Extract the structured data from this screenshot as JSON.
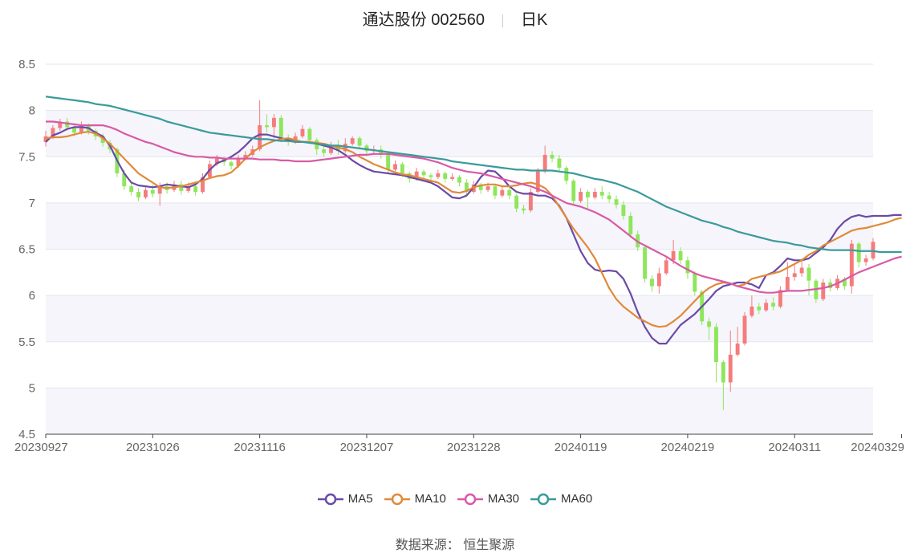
{
  "title": {
    "stock": "通达股份 002560",
    "period": "日K"
  },
  "source": {
    "label": "数据来源：",
    "name": "恒生聚源"
  },
  "colors": {
    "up": "#f47c7c",
    "down": "#8ee65a",
    "grid": "#e3e6ee",
    "axis": "#444444",
    "band": "#f5f5fb"
  },
  "chart_data": {
    "type": "candlestick",
    "title": "",
    "xlabel": "",
    "ylabel": "",
    "ylim": [
      4.5,
      8.5
    ],
    "yticks": [
      4.5,
      5,
      5.5,
      6,
      6.5,
      7,
      7.5,
      8,
      8.5
    ],
    "ytick_labels": [
      "4.5",
      "5",
      "5.5",
      "6",
      "6.5",
      "7",
      "7.5",
      "8",
      "8.5"
    ],
    "grid": true,
    "legend_position": "bottom",
    "x_labels": [
      "20230927",
      "20231026",
      "20231116",
      "20231207",
      "20231228",
      "20240119",
      "20240219",
      "20240311",
      "20240329"
    ],
    "x_label_index": [
      0,
      15,
      30,
      45,
      60,
      75,
      90,
      105,
      120
    ],
    "candles": [
      [
        7.66,
        7.72,
        7.61,
        7.78
      ],
      [
        7.72,
        7.81,
        7.69,
        7.84
      ],
      [
        7.81,
        7.88,
        7.78,
        7.91
      ],
      [
        7.88,
        7.82,
        7.78,
        7.92
      ],
      [
        7.82,
        7.76,
        7.72,
        7.85
      ],
      [
        7.76,
        7.84,
        7.74,
        7.88
      ],
      [
        7.84,
        7.78,
        7.74,
        7.86
      ],
      [
        7.78,
        7.72,
        7.68,
        7.8
      ],
      [
        7.72,
        7.65,
        7.61,
        7.75
      ],
      [
        7.65,
        7.58,
        7.54,
        7.68
      ],
      [
        7.58,
        7.32,
        7.28,
        7.6
      ],
      [
        7.32,
        7.18,
        7.14,
        7.36
      ],
      [
        7.18,
        7.12,
        7.08,
        7.22
      ],
      [
        7.12,
        7.06,
        7.02,
        7.16
      ],
      [
        7.06,
        7.14,
        7.04,
        7.18
      ],
      [
        7.14,
        7.1,
        7.06,
        7.2
      ],
      [
        7.1,
        7.18,
        6.97,
        7.22
      ],
      [
        7.18,
        7.14,
        7.1,
        7.22
      ],
      [
        7.14,
        7.2,
        7.12,
        7.24
      ],
      [
        7.2,
        7.13,
        7.09,
        7.24
      ],
      [
        7.13,
        7.18,
        7.11,
        7.22
      ],
      [
        7.18,
        7.12,
        7.08,
        7.2
      ],
      [
        7.12,
        7.28,
        7.1,
        7.32
      ],
      [
        7.28,
        7.42,
        7.26,
        7.46
      ],
      [
        7.42,
        7.48,
        7.4,
        7.52
      ],
      [
        7.48,
        7.44,
        7.4,
        7.5
      ],
      [
        7.44,
        7.4,
        7.36,
        7.46
      ],
      [
        7.4,
        7.48,
        7.38,
        7.52
      ],
      [
        7.48,
        7.52,
        7.46,
        7.56
      ],
      [
        7.52,
        7.58,
        7.5,
        7.62
      ],
      [
        7.58,
        7.84,
        7.56,
        8.11
      ],
      [
        7.84,
        7.82,
        7.76,
        7.96
      ],
      [
        7.82,
        7.92,
        7.7,
        7.96
      ],
      [
        7.92,
        7.7,
        7.66,
        7.95
      ],
      [
        7.7,
        7.66,
        7.62,
        7.74
      ],
      [
        7.66,
        7.72,
        7.64,
        7.76
      ],
      [
        7.72,
        7.8,
        7.7,
        7.84
      ],
      [
        7.8,
        7.68,
        7.64,
        7.82
      ],
      [
        7.68,
        7.58,
        7.52,
        7.7
      ],
      [
        7.58,
        7.54,
        7.5,
        7.62
      ],
      [
        7.54,
        7.62,
        7.52,
        7.66
      ],
      [
        7.62,
        7.56,
        7.52,
        7.68
      ],
      [
        7.56,
        7.64,
        7.54,
        7.7
      ],
      [
        7.64,
        7.7,
        7.62,
        7.72
      ],
      [
        7.7,
        7.62,
        7.58,
        7.72
      ],
      [
        7.62,
        7.56,
        7.52,
        7.64
      ],
      [
        7.56,
        7.58,
        7.52,
        7.62
      ],
      [
        7.58,
        7.52,
        7.48,
        7.62
      ],
      [
        7.52,
        7.36,
        7.32,
        7.54
      ],
      [
        7.36,
        7.42,
        7.34,
        7.46
      ],
      [
        7.42,
        7.32,
        7.28,
        7.44
      ],
      [
        7.32,
        7.26,
        7.22,
        7.34
      ],
      [
        7.26,
        7.34,
        7.24,
        7.38
      ],
      [
        7.34,
        7.3,
        7.26,
        7.36
      ],
      [
        7.3,
        7.28,
        7.24,
        7.32
      ],
      [
        7.28,
        7.32,
        7.26,
        7.36
      ],
      [
        7.32,
        7.26,
        7.22,
        7.34
      ],
      [
        7.26,
        7.28,
        7.24,
        7.32
      ],
      [
        7.28,
        7.22,
        7.18,
        7.3
      ],
      [
        7.22,
        7.12,
        7.08,
        7.26
      ],
      [
        7.12,
        7.2,
        7.1,
        7.24
      ],
      [
        7.2,
        7.14,
        7.1,
        7.22
      ],
      [
        7.14,
        7.18,
        7.12,
        7.22
      ],
      [
        7.18,
        7.08,
        7.04,
        7.2
      ],
      [
        7.08,
        7.14,
        7.06,
        7.18
      ],
      [
        7.14,
        7.08,
        7.04,
        7.16
      ],
      [
        7.08,
        6.94,
        6.9,
        7.1
      ],
      [
        6.94,
        6.92,
        6.88,
        6.98
      ],
      [
        6.92,
        7.12,
        6.9,
        7.16
      ],
      [
        7.12,
        7.34,
        7.1,
        7.38
      ],
      [
        7.34,
        7.52,
        7.32,
        7.62
      ],
      [
        7.52,
        7.48,
        7.44,
        7.56
      ],
      [
        7.48,
        7.38,
        7.34,
        7.52
      ],
      [
        7.38,
        7.24,
        7.2,
        7.4
      ],
      [
        7.24,
        7.02,
        6.98,
        7.26
      ],
      [
        7.02,
        7.12,
        7.0,
        7.16
      ],
      [
        7.12,
        7.06,
        6.92,
        7.14
      ],
      [
        7.06,
        7.12,
        7.04,
        7.16
      ],
      [
        7.12,
        7.08,
        7.04,
        7.18
      ],
      [
        7.08,
        7.04,
        7.0,
        7.12
      ],
      [
        7.04,
        6.98,
        6.94,
        7.08
      ],
      [
        6.98,
        6.86,
        6.82,
        7.02
      ],
      [
        6.86,
        6.66,
        6.62,
        6.9
      ],
      [
        6.66,
        6.52,
        6.48,
        6.7
      ],
      [
        6.52,
        6.18,
        6.14,
        6.54
      ],
      [
        6.18,
        6.1,
        6.04,
        6.22
      ],
      [
        6.1,
        6.24,
        6.02,
        6.3
      ],
      [
        6.24,
        6.38,
        6.22,
        6.42
      ],
      [
        6.38,
        6.48,
        6.34,
        6.6
      ],
      [
        6.48,
        6.38,
        6.34,
        6.52
      ],
      [
        6.38,
        6.24,
        6.18,
        6.42
      ],
      [
        6.24,
        6.04,
        6.0,
        6.26
      ],
      [
        6.04,
        5.72,
        5.68,
        6.06
      ],
      [
        5.72,
        5.66,
        5.52,
        5.76
      ],
      [
        5.66,
        5.28,
        5.06,
        5.7
      ],
      [
        5.28,
        5.06,
        4.76,
        5.3
      ],
      [
        5.06,
        5.36,
        4.96,
        5.62
      ],
      [
        5.36,
        5.48,
        5.34,
        5.66
      ],
      [
        5.48,
        5.78,
        5.46,
        5.82
      ],
      [
        5.78,
        5.88,
        5.76,
        6.0
      ],
      [
        5.88,
        5.84,
        5.8,
        5.92
      ],
      [
        5.84,
        5.92,
        5.82,
        5.96
      ],
      [
        5.92,
        5.88,
        5.84,
        5.98
      ],
      [
        5.88,
        6.06,
        5.86,
        6.1
      ],
      [
        6.06,
        6.2,
        6.04,
        6.36
      ],
      [
        6.2,
        6.24,
        6.16,
        6.34
      ],
      [
        6.24,
        6.3,
        6.2,
        6.4
      ],
      [
        6.3,
        6.16,
        6.0,
        6.34
      ],
      [
        6.16,
        5.96,
        5.92,
        6.18
      ],
      [
        5.96,
        6.14,
        5.94,
        6.18
      ],
      [
        6.14,
        6.08,
        6.04,
        6.18
      ],
      [
        6.08,
        6.18,
        6.06,
        6.22
      ],
      [
        6.18,
        6.1,
        6.06,
        6.2
      ],
      [
        6.1,
        6.56,
        6.02,
        6.6
      ],
      [
        6.56,
        6.36,
        6.3,
        6.58
      ],
      [
        6.36,
        6.4,
        6.32,
        6.44
      ],
      [
        6.4,
        6.58,
        6.38,
        6.62
      ]
    ],
    "series": [
      {
        "name": "MA5",
        "color": "#6a4aa7",
        "values": [
          7.66,
          7.73,
          7.76,
          7.8,
          7.82,
          7.82,
          7.81,
          7.76,
          7.72,
          7.62,
          7.46,
          7.32,
          7.22,
          7.19,
          7.18,
          7.17,
          7.18,
          7.2,
          7.19,
          7.18,
          7.17,
          7.2,
          7.26,
          7.36,
          7.43,
          7.46,
          7.5,
          7.55,
          7.62,
          7.7,
          7.74,
          7.74,
          7.72,
          7.7,
          7.68,
          7.66,
          7.66,
          7.66,
          7.64,
          7.62,
          7.6,
          7.57,
          7.52,
          7.46,
          7.41,
          7.37,
          7.34,
          7.33,
          7.32,
          7.31,
          7.3,
          7.28,
          7.26,
          7.24,
          7.22,
          7.18,
          7.12,
          7.06,
          7.05,
          7.08,
          7.17,
          7.28,
          7.35,
          7.34,
          7.27,
          7.18,
          7.12,
          7.1,
          7.1,
          7.08,
          7.08,
          7.05,
          6.97,
          6.84,
          6.66,
          6.48,
          6.35,
          6.28,
          6.26,
          6.27,
          6.26,
          6.18,
          6.02,
          5.82,
          5.66,
          5.54,
          5.48,
          5.48,
          5.58,
          5.68,
          5.74,
          5.8,
          5.88,
          5.96,
          6.05,
          6.1,
          6.12,
          6.14,
          6.14,
          6.12,
          6.08,
          6.22,
          6.25,
          6.32,
          6.4,
          6.38,
          6.38,
          6.4,
          6.46,
          6.52,
          6.6,
          6.72,
          6.8,
          6.85,
          6.87,
          6.85,
          6.86,
          6.86,
          6.86,
          6.87,
          6.87
        ]
      },
      {
        "name": "MA10",
        "color": "#e08a3a",
        "values": [
          7.7,
          7.71,
          7.71,
          7.72,
          7.74,
          7.76,
          7.77,
          7.75,
          7.7,
          7.64,
          7.56,
          7.48,
          7.4,
          7.32,
          7.27,
          7.22,
          7.17,
          7.16,
          7.17,
          7.18,
          7.2,
          7.22,
          7.24,
          7.27,
          7.29,
          7.3,
          7.33,
          7.4,
          7.48,
          7.55,
          7.6,
          7.64,
          7.67,
          7.69,
          7.7,
          7.68,
          7.66,
          7.66,
          7.65,
          7.64,
          7.62,
          7.6,
          7.58,
          7.55,
          7.5,
          7.46,
          7.42,
          7.39,
          7.36,
          7.33,
          7.31,
          7.3,
          7.28,
          7.26,
          7.24,
          7.22,
          7.17,
          7.12,
          7.11,
          7.13,
          7.17,
          7.19,
          7.2,
          7.2,
          7.18,
          7.18,
          7.19,
          7.21,
          7.22,
          7.2,
          7.16,
          7.08,
          6.96,
          6.84,
          6.72,
          6.62,
          6.52,
          6.4,
          6.24,
          6.08,
          5.96,
          5.88,
          5.82,
          5.76,
          5.72,
          5.68,
          5.66,
          5.67,
          5.72,
          5.78,
          5.86,
          5.94,
          6.02,
          6.08,
          6.12,
          6.14,
          6.13,
          6.1,
          6.12,
          6.18,
          6.2,
          6.22,
          6.24,
          6.26,
          6.3,
          6.34,
          6.38,
          6.44,
          6.48,
          6.54,
          6.58,
          6.62,
          6.66,
          6.7,
          6.72,
          6.73,
          6.75,
          6.77,
          6.79,
          6.82,
          6.84
        ]
      },
      {
        "name": "MA30",
        "color": "#d85aa6",
        "values": [
          7.88,
          7.88,
          7.87,
          7.86,
          7.85,
          7.84,
          7.84,
          7.84,
          7.84,
          7.82,
          7.79,
          7.75,
          7.72,
          7.69,
          7.66,
          7.64,
          7.61,
          7.58,
          7.55,
          7.53,
          7.51,
          7.5,
          7.5,
          7.49,
          7.49,
          7.48,
          7.48,
          7.48,
          7.48,
          7.48,
          7.47,
          7.47,
          7.47,
          7.46,
          7.46,
          7.45,
          7.45,
          7.45,
          7.46,
          7.47,
          7.48,
          7.49,
          7.5,
          7.51,
          7.52,
          7.52,
          7.53,
          7.53,
          7.53,
          7.52,
          7.51,
          7.5,
          7.49,
          7.48,
          7.46,
          7.44,
          7.41,
          7.38,
          7.36,
          7.34,
          7.33,
          7.32,
          7.3,
          7.28,
          7.26,
          7.24,
          7.22,
          7.2,
          7.18,
          7.15,
          7.12,
          7.08,
          7.04,
          7.0,
          6.98,
          6.96,
          6.93,
          6.9,
          6.86,
          6.82,
          6.76,
          6.7,
          6.64,
          6.58,
          6.54,
          6.5,
          6.46,
          6.42,
          6.37,
          6.32,
          6.28,
          6.24,
          6.21,
          6.19,
          6.17,
          6.15,
          6.13,
          6.1,
          6.08,
          6.06,
          6.04,
          6.03,
          6.03,
          6.04,
          6.05,
          6.05,
          6.05,
          6.06,
          6.07,
          6.08,
          6.1,
          6.13,
          6.17,
          6.21,
          6.25,
          6.28,
          6.31,
          6.34,
          6.37,
          6.4,
          6.42
        ]
      },
      {
        "name": "MA60",
        "color": "#3a9a9a",
        "values": [
          8.15,
          8.14,
          8.13,
          8.12,
          8.11,
          8.1,
          8.09,
          8.07,
          8.06,
          8.05,
          8.03,
          8.01,
          7.99,
          7.97,
          7.95,
          7.93,
          7.91,
          7.88,
          7.86,
          7.84,
          7.82,
          7.8,
          7.78,
          7.76,
          7.75,
          7.74,
          7.73,
          7.72,
          7.71,
          7.7,
          7.69,
          7.69,
          7.68,
          7.67,
          7.67,
          7.66,
          7.66,
          7.65,
          7.64,
          7.63,
          7.62,
          7.62,
          7.61,
          7.6,
          7.59,
          7.58,
          7.57,
          7.56,
          7.55,
          7.54,
          7.53,
          7.52,
          7.51,
          7.5,
          7.49,
          7.48,
          7.47,
          7.45,
          7.44,
          7.43,
          7.42,
          7.41,
          7.4,
          7.39,
          7.38,
          7.37,
          7.36,
          7.36,
          7.35,
          7.35,
          7.35,
          7.35,
          7.34,
          7.33,
          7.32,
          7.3,
          7.28,
          7.26,
          7.25,
          7.23,
          7.21,
          7.18,
          7.15,
          7.12,
          7.08,
          7.04,
          7.0,
          6.96,
          6.93,
          6.9,
          6.87,
          6.84,
          6.81,
          6.79,
          6.77,
          6.74,
          6.72,
          6.69,
          6.67,
          6.65,
          6.63,
          6.61,
          6.59,
          6.58,
          6.57,
          6.55,
          6.54,
          6.52,
          6.51,
          6.5,
          6.49,
          6.49,
          6.49,
          6.49,
          6.48,
          6.48,
          6.48,
          6.47,
          6.47,
          6.47,
          6.47
        ]
      }
    ]
  }
}
